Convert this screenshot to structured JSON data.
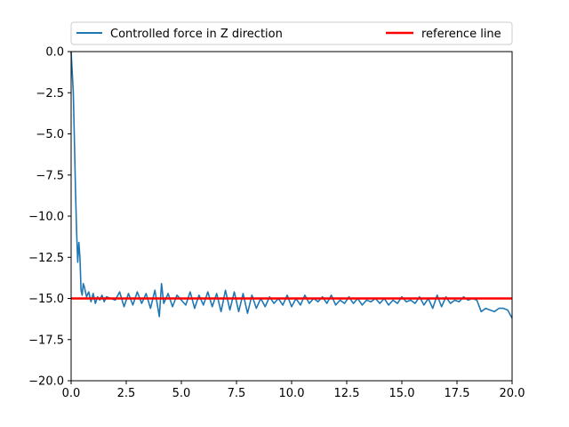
{
  "chart_data": {
    "type": "line",
    "title": "",
    "xlabel": "",
    "ylabel": "",
    "xlim": [
      0,
      20
    ],
    "ylim": [
      -20,
      0
    ],
    "xticks": [
      0,
      2.5,
      5,
      7.5,
      10,
      12.5,
      15,
      17.5,
      20
    ],
    "yticks": [
      0,
      -2.5,
      -5,
      -7.5,
      -10,
      -12.5,
      -15,
      -17.5,
      -20
    ],
    "xtick_labels": [
      "0.0",
      "2.5",
      "5.0",
      "7.5",
      "10.0",
      "12.5",
      "15.0",
      "17.5",
      "20.0"
    ],
    "ytick_labels": [
      "0.0",
      "−2.5",
      "−5.0",
      "−7.5",
      "−10.0",
      "−12.5",
      "−15.0",
      "−17.5",
      "−20.0"
    ],
    "grid": false,
    "legend_position": "top",
    "series": [
      {
        "name": "Controlled force in Z direction",
        "color": "#1f77b4",
        "x": [
          0.0,
          0.1,
          0.2,
          0.25,
          0.3,
          0.35,
          0.4,
          0.45,
          0.5,
          0.55,
          0.6,
          0.7,
          0.8,
          0.9,
          1.0,
          1.1,
          1.2,
          1.3,
          1.4,
          1.5,
          1.6,
          1.8,
          2.0,
          2.2,
          2.4,
          2.6,
          2.8,
          3.0,
          3.2,
          3.4,
          3.6,
          3.8,
          4.0,
          4.1,
          4.2,
          4.4,
          4.6,
          4.8,
          5.0,
          5.2,
          5.4,
          5.6,
          5.8,
          6.0,
          6.2,
          6.4,
          6.6,
          6.8,
          7.0,
          7.2,
          7.4,
          7.6,
          7.8,
          8.0,
          8.2,
          8.4,
          8.6,
          8.8,
          9.0,
          9.2,
          9.4,
          9.6,
          9.8,
          10.0,
          10.2,
          10.4,
          10.6,
          10.8,
          11.0,
          11.2,
          11.4,
          11.6,
          11.8,
          12.0,
          12.2,
          12.4,
          12.6,
          12.8,
          13.0,
          13.2,
          13.4,
          13.6,
          13.8,
          14.0,
          14.2,
          14.4,
          14.6,
          14.8,
          15.0,
          15.2,
          15.4,
          15.6,
          15.8,
          16.0,
          16.2,
          16.4,
          16.6,
          16.8,
          17.0,
          17.2,
          17.4,
          17.6,
          17.8,
          18.0,
          18.2,
          18.4,
          18.6,
          18.8,
          19.0,
          19.2,
          19.4,
          19.6,
          19.8,
          20.0
        ],
        "y": [
          0.0,
          -2.5,
          -8.5,
          -11.0,
          -12.8,
          -11.6,
          -12.5,
          -14.5,
          -14.8,
          -14.1,
          -14.3,
          -14.9,
          -14.6,
          -15.2,
          -14.7,
          -15.3,
          -14.9,
          -15.1,
          -14.8,
          -15.2,
          -14.9,
          -15.0,
          -15.1,
          -14.6,
          -15.5,
          -14.7,
          -15.4,
          -14.6,
          -15.3,
          -14.7,
          -15.6,
          -14.5,
          -16.1,
          -14.1,
          -15.3,
          -14.7,
          -15.5,
          -14.8,
          -15.1,
          -15.4,
          -14.6,
          -15.6,
          -14.8,
          -15.4,
          -14.6,
          -15.5,
          -14.7,
          -15.8,
          -14.5,
          -15.7,
          -14.6,
          -15.8,
          -14.7,
          -15.9,
          -14.8,
          -15.6,
          -15.0,
          -15.5,
          -14.9,
          -15.3,
          -15.0,
          -15.4,
          -14.8,
          -15.5,
          -15.0,
          -15.4,
          -14.8,
          -15.3,
          -15.0,
          -15.2,
          -14.9,
          -15.3,
          -14.8,
          -15.4,
          -15.1,
          -15.3,
          -14.9,
          -15.3,
          -15.0,
          -15.4,
          -15.1,
          -15.2,
          -15.0,
          -15.3,
          -15.0,
          -15.4,
          -15.1,
          -15.3,
          -14.9,
          -15.2,
          -15.1,
          -15.3,
          -14.9,
          -15.4,
          -15.0,
          -15.6,
          -14.8,
          -15.5,
          -14.9,
          -15.3,
          -15.1,
          -15.2,
          -14.9,
          -15.1,
          -15.0,
          -15.1,
          -15.8,
          -15.6,
          -15.7,
          -15.8,
          -15.6,
          -15.6,
          -15.7,
          -16.2
        ]
      },
      {
        "name": "reference line",
        "color": "#ff0000",
        "x": [
          0,
          20
        ],
        "y": [
          -15,
          -15
        ]
      }
    ]
  }
}
